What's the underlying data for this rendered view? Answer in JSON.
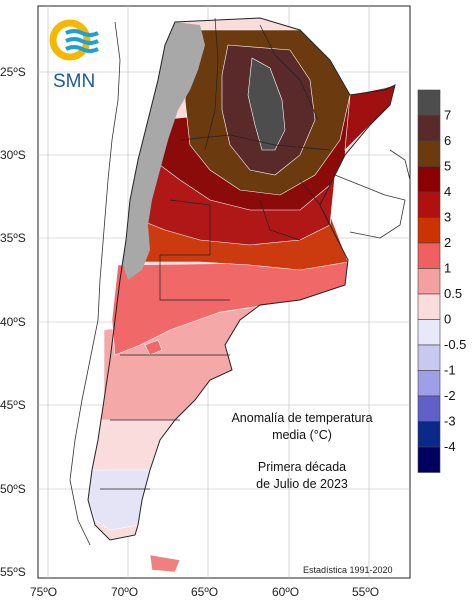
{
  "logo": {
    "text": "SMN",
    "ring_color": "#f5b800",
    "wave_color": "#1aa0dc"
  },
  "title": {
    "line1": "Anomalía de temperatura",
    "line2": "media (°C)",
    "period1": "Primera década",
    "period2": "de Julio de 2023"
  },
  "footnote": "Estadística 1991-2020",
  "lat_labels": [
    "25ºS",
    "30ºS",
    "35ºS",
    "40ºS",
    "45ºS",
    "50ºS",
    "55ºS"
  ],
  "lon_labels": [
    "75ºO",
    "70ºO",
    "65ºO",
    "60ºO",
    "55ºO"
  ],
  "legend": [
    {
      "label": "7",
      "color": "#4d4d4d"
    },
    {
      "label": "6",
      "color": "#5a2a2a"
    },
    {
      "label": "5",
      "color": "#6b3a0e"
    },
    {
      "label": "4",
      "color": "#8b0000"
    },
    {
      "label": "3",
      "color": "#b01010"
    },
    {
      "label": "2",
      "color": "#cc3300"
    },
    {
      "label": "1",
      "color": "#f06060"
    },
    {
      "label": "0.5",
      "color": "#f5a0a0"
    },
    {
      "label": "0",
      "color": "#fbdcdc"
    },
    {
      "label": "-0.5",
      "color": "#e8e8f8"
    },
    {
      "label": "-1",
      "color": "#c8c8f0"
    },
    {
      "label": "-2",
      "color": "#9f9fe8"
    },
    {
      "label": "-3",
      "color": "#6060c8"
    },
    {
      "label": "-4",
      "color": "#0a2a8a"
    },
    {
      "label": "",
      "color": "#000060"
    }
  ]
}
